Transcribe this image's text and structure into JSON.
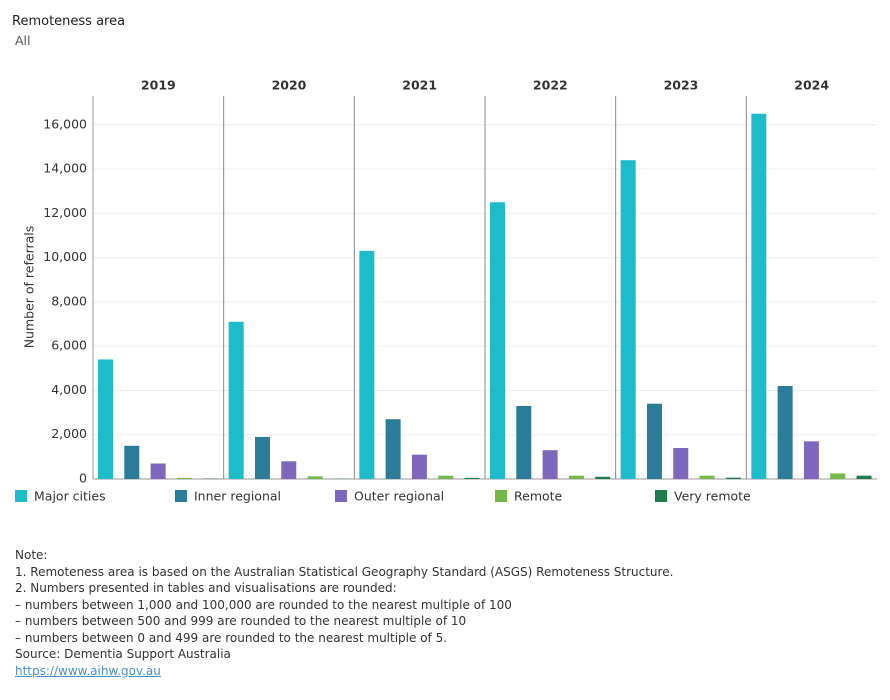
{
  "filter": {
    "label": "Remoteness area",
    "value": "All"
  },
  "chart_data": {
    "type": "bar",
    "y_label": "Number of referrals",
    "categories": [
      "2019",
      "2020",
      "2021",
      "2022",
      "2023",
      "2024"
    ],
    "series": [
      {
        "name": "Major cities",
        "color": "#1cbccb",
        "values": [
          5400,
          7100,
          10300,
          12500,
          14400,
          16500
        ]
      },
      {
        "name": "Inner regional",
        "color": "#2b7c98",
        "values": [
          1500,
          1900,
          2700,
          3300,
          3400,
          4200
        ]
      },
      {
        "name": "Outer regional",
        "color": "#7d68bd",
        "values": [
          700,
          800,
          1100,
          1300,
          1400,
          1700
        ]
      },
      {
        "name": "Remote",
        "color": "#74b84a",
        "values": [
          50,
          120,
          150,
          150,
          150,
          250
        ]
      },
      {
        "name": "Very remote",
        "color": "#1f7a4c",
        "values": [
          20,
          10,
          50,
          100,
          60,
          150
        ]
      }
    ],
    "ylim": [
      0,
      17300
    ],
    "yticks": [
      0,
      {
        "value": 2000,
        "label": "2,000"
      },
      {
        "value": 4000,
        "label": "4,000"
      },
      {
        "value": 6000,
        "label": "6,000"
      },
      {
        "value": 8000,
        "label": "8,000"
      },
      {
        "value": 10000,
        "label": "10,000"
      },
      {
        "value": 12000,
        "label": "12,000"
      },
      {
        "value": 14000,
        "label": "14,000"
      },
      {
        "value": 16000,
        "label": "16,000"
      }
    ],
    "grid": true
  },
  "notes": [
    "Note:",
    "1. Remoteness area is based on the Australian Statistical Geography Standard (ASGS) Remoteness Structure.",
    "2. Numbers presented in tables and visualisations are rounded:",
    "– numbers between 1,000 and 100,000 are rounded to the nearest multiple of 100",
    "– numbers between 500 and 999 are rounded to the nearest multiple of 10",
    "– numbers between 0 and 499 are rounded to the nearest multiple of 5.",
    "Source: Dementia Support Australia"
  ],
  "link": "https://www.aihw.gov.au"
}
